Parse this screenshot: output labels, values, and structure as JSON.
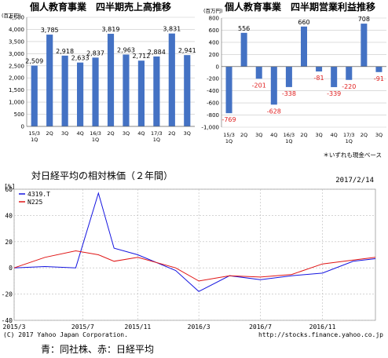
{
  "caption": "青：同社株、赤：日経平均",
  "chart_data": [
    {
      "type": "bar",
      "title": "個人教育事業　四半期売上高推移",
      "unit_label": "(百万円)",
      "categories": [
        "15/3\n1Q",
        "2Q",
        "3Q",
        "4Q",
        "16/3\n1Q",
        "2Q",
        "3Q",
        "4Q",
        "17/3\n1Q",
        "2Q",
        "3Q"
      ],
      "values": [
        2509,
        3785,
        2918,
        2633,
        2837,
        3819,
        2963,
        2712,
        2884,
        3831,
        2941
      ],
      "value_labels": [
        "2,509",
        "3,785",
        "2,918",
        "2,633",
        "2,837",
        "3,819",
        "2,963",
        "2,712",
        "2,884",
        "3,831",
        "2,941"
      ],
      "ylim": [
        0,
        4500
      ],
      "yticks": [
        "0",
        "500",
        "1,000",
        "1,500",
        "2,000",
        "2,500",
        "3,000",
        "3,500",
        "4,000",
        "4,500"
      ],
      "grid": true,
      "color": "#4472c4"
    },
    {
      "type": "bar",
      "title": "個人教育事業　四半期営業利益推移",
      "unit_label": "(百万円)",
      "categories": [
        "15/3\n1Q",
        "2Q",
        "3Q",
        "4Q",
        "16/3\n1Q",
        "2Q",
        "3Q",
        "4Q",
        "17/3\n1Q",
        "2Q",
        "3Q"
      ],
      "values": [
        -769,
        556,
        -201,
        -628,
        -338,
        660,
        -81,
        -339,
        -220,
        708,
        -91
      ],
      "value_labels": [
        "-769",
        "556",
        "-201",
        "-628",
        "-338",
        "660",
        "-81",
        "-339",
        "-220",
        "708",
        "-91"
      ],
      "ylim": [
        -1000,
        800
      ],
      "yticks": [
        "-1,000",
        "-800",
        "-600",
        "-400",
        "-200",
        "0",
        "200",
        "400",
        "600",
        "800"
      ],
      "grid": true,
      "color": "#4472c4",
      "negative_label_color": "#e02020",
      "note": "＊いずれも現金ベース"
    },
    {
      "type": "line",
      "title": "対日経平均の相対株価（２年間）",
      "date": "2017/2/14",
      "ylabel": "[%]",
      "ylim": [
        -40,
        60
      ],
      "yticks": [
        "60",
        "40",
        "20",
        "0",
        "-20",
        "-40"
      ],
      "xticks": [
        "2015/3",
        "2015/7",
        "2015/11",
        "2016/3",
        "2016/7",
        "2016/11"
      ],
      "x": [
        "2015-03-01",
        "2015-05-01",
        "2015-07-01",
        "2015-08-15",
        "2015-09-15",
        "2015-11-01",
        "2016-01-15",
        "2016-03-01",
        "2016-05-01",
        "2016-07-01",
        "2016-09-01",
        "2016-11-01",
        "2017-01-01",
        "2017-02-14"
      ],
      "series": [
        {
          "name": "4319.T",
          "color": "#1515e0",
          "values": [
            0,
            1,
            0,
            57,
            15,
            10,
            -2,
            -18,
            -6,
            -9,
            -6,
            -4,
            5,
            7
          ]
        },
        {
          "name": "N225",
          "color": "#e01515",
          "values": [
            0,
            8,
            13,
            10,
            5,
            8,
            0,
            -10,
            -6,
            -7,
            -5,
            3,
            6,
            8
          ]
        }
      ],
      "copyright": "(C) 2017 Yahoo Japan Corporation.",
      "source_url": "http://stocks.finance.yahoo.co.jp",
      "grid": true
    }
  ]
}
